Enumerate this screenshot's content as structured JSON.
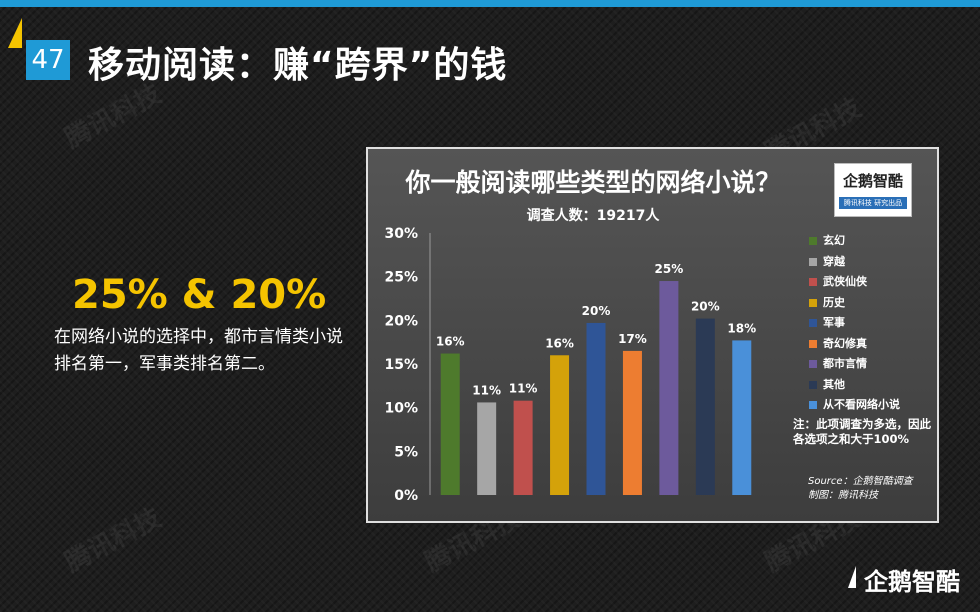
{
  "slide": {
    "page_number": "47",
    "title": "移动阅读：赚“跨界”的钱",
    "highlight": "25% & 20%",
    "description": "在网络小说的选择中，都市言情类小说排名第一，军事类排名第二。",
    "watermark": "腾讯科技",
    "brand": "企鹅智酷"
  },
  "logo": {
    "name": "企鹅智酷",
    "tagline": "腾讯科技 研究出品"
  },
  "chart_data": {
    "type": "bar",
    "title": "你一般阅读哪些类型的网络小说？",
    "subtitle": "调查人数：19217人",
    "categories": [
      "玄幻",
      "穿越",
      "武侠仙侠",
      "历史",
      "军事",
      "奇幻修真",
      "都市言情",
      "其他",
      "从不看网络小说"
    ],
    "values": [
      16,
      11,
      11,
      16,
      20,
      17,
      25,
      20,
      18
    ],
    "data_labels": [
      "16%",
      "11%",
      "11%",
      "16%",
      "20%",
      "17%",
      "25%",
      "20%",
      "18%"
    ],
    "show_labels": [
      true,
      true,
      true,
      true,
      true,
      true,
      true,
      true,
      true
    ],
    "bar_heights": [
      16.2,
      10.6,
      10.8,
      16.0,
      19.7,
      16.5,
      24.5,
      20.2,
      17.7
    ],
    "colors": [
      "#4e7a2c",
      "#a6a6a6",
      "#c0504d",
      "#d4a20a",
      "#2f5597",
      "#ed7d31",
      "#6d5a9c",
      "#2b3a55",
      "#4a90d9"
    ],
    "yticks": [
      "30%",
      "25%",
      "20%",
      "15%",
      "10%",
      "5%",
      "0%"
    ],
    "ylim": [
      0,
      30
    ],
    "legend_position": "right",
    "note": "注：此项调查为多选，因此各选项之和大于100%",
    "source": "Source：企鹅智酷调查",
    "producer": "制图：腾讯科技"
  }
}
